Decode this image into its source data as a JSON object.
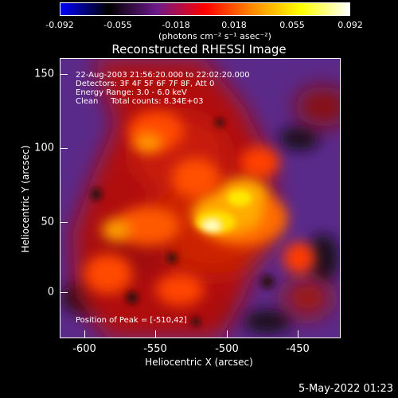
{
  "colorbar": {
    "ticks": [
      "-0.092",
      "-0.055",
      "-0.018",
      "0.018",
      "0.055",
      "0.092"
    ],
    "units": "(photons cm⁻² s⁻¹ asec⁻²)",
    "gradient": [
      "#0000ff",
      "#000000",
      "#6b1a8a",
      "#ff0000",
      "#ff8c00",
      "#ffff00",
      "#ffffff"
    ]
  },
  "title": "Reconstructed RHESSI Image",
  "info": {
    "line1": "22-Aug-2003 21:56:20.000 to 22:02:20.000",
    "line2": "Detectors: 3F 4F 5F 6F 7F 8F, Att 0",
    "line3": "Energy Range: 3.0 - 6.0 keV",
    "line4": "Clean     Total counts: 8.34E+03"
  },
  "peak_text": "Position of Peak = [-510,42]",
  "axes": {
    "xlabel": "Heliocentric X (arcsec)",
    "ylabel": "Heliocentric Y (arcsec)",
    "xticks": [
      "-600",
      "-550",
      "-500",
      "-450"
    ],
    "yticks": [
      "150",
      "100",
      "50",
      "0"
    ]
  },
  "timestamp": "5-May-2022 01:23"
}
